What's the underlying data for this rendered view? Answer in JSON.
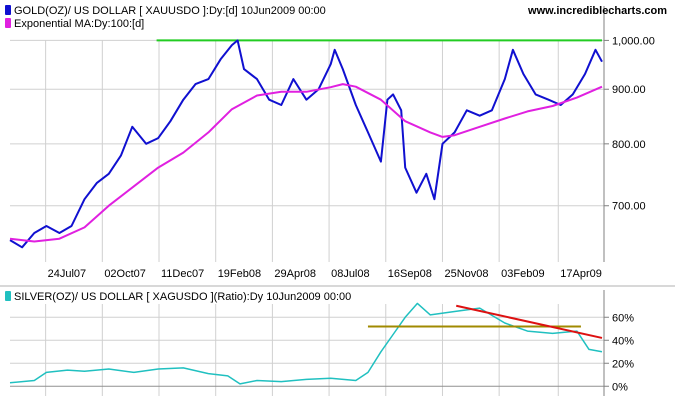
{
  "site": "www.incrediblecharts.com",
  "colors": {
    "price": "#1010d0",
    "ma": "#e020e0",
    "resistance": "#22cc22",
    "ratio": "#20c0c0",
    "ratio_support": "#a08a00",
    "ratio_trend": "#dd1111",
    "grid": "#d0d0d0"
  },
  "chart_data": [
    {
      "type": "line",
      "legend": [
        {
          "text": "GOLD(OZ)/ US DOLLAR [ XAUUSDO ]:Dy:[d]  10Jun2009 00:00",
          "color": "#1010d0"
        },
        {
          "text": "Exponential MA:Dy:100:[d]",
          "color": "#e020e0"
        }
      ],
      "x_ticks": [
        "24Jul07",
        "02Oct07",
        "11Dec07",
        "19Feb08",
        "29Apr08",
        "08Jul08",
        "16Sep08",
        "25Nov08",
        "03Feb09",
        "17Apr09"
      ],
      "y_ticks": [
        "1,000.00",
        "900.00",
        "800.00",
        "700.00"
      ],
      "y_log": true,
      "ylim": [
        620,
        1045
      ],
      "series": [
        {
          "key": "price",
          "x": [
            "2007-06-10",
            "2007-06-25",
            "2007-07-10",
            "2007-07-25",
            "2007-08-10",
            "2007-08-25",
            "2007-09-10",
            "2007-09-25",
            "2007-10-10",
            "2007-10-25",
            "2007-11-08",
            "2007-11-25",
            "2007-12-10",
            "2007-12-25",
            "2008-01-10",
            "2008-01-25",
            "2008-02-10",
            "2008-02-25",
            "2008-03-10",
            "2008-03-17",
            "2008-03-25",
            "2008-04-10",
            "2008-04-25",
            "2008-05-10",
            "2008-05-25",
            "2008-06-10",
            "2008-06-25",
            "2008-07-10",
            "2008-07-15",
            "2008-07-25",
            "2008-08-10",
            "2008-08-25",
            "2008-09-10",
            "2008-09-18",
            "2008-09-25",
            "2008-10-05",
            "2008-10-10",
            "2008-10-24",
            "2008-11-05",
            "2008-11-15",
            "2008-11-25",
            "2008-12-10",
            "2008-12-25",
            "2009-01-10",
            "2009-01-25",
            "2009-02-10",
            "2009-02-20",
            "2009-03-05",
            "2009-03-20",
            "2009-04-05",
            "2009-04-20",
            "2009-05-05",
            "2009-05-20",
            "2009-06-02",
            "2009-06-10"
          ],
          "y": [
            650,
            640,
            660,
            670,
            660,
            670,
            710,
            735,
            750,
            780,
            830,
            800,
            810,
            840,
            880,
            910,
            920,
            960,
            990,
            1000,
            940,
            920,
            880,
            870,
            920,
            880,
            900,
            950,
            980,
            940,
            870,
            820,
            770,
            880,
            890,
            860,
            760,
            720,
            750,
            710,
            800,
            820,
            860,
            850,
            860,
            920,
            980,
            930,
            890,
            880,
            870,
            890,
            930,
            980,
            955
          ]
        },
        {
          "key": "ma",
          "x": [
            "2007-06-10",
            "2007-07-10",
            "2007-08-10",
            "2007-09-10",
            "2007-10-10",
            "2007-11-10",
            "2007-12-10",
            "2008-01-10",
            "2008-02-10",
            "2008-03-10",
            "2008-04-10",
            "2008-05-10",
            "2008-06-10",
            "2008-07-10",
            "2008-07-25",
            "2008-08-10",
            "2008-09-10",
            "2008-10-10",
            "2008-11-10",
            "2008-11-25",
            "2008-12-10",
            "2009-01-10",
            "2009-02-10",
            "2009-03-10",
            "2009-04-10",
            "2009-05-10",
            "2009-06-10"
          ],
          "y": [
            652,
            648,
            652,
            668,
            700,
            730,
            760,
            785,
            820,
            862,
            888,
            895,
            895,
            904,
            910,
            905,
            880,
            840,
            820,
            812,
            815,
            830,
            845,
            858,
            868,
            884,
            905
          ]
        }
      ],
      "annotations": [
        {
          "type": "horizontal-line",
          "key": "resistance",
          "y": 1000,
          "x_from": "2007-12-08",
          "x_to": "2009-06-10"
        }
      ]
    },
    {
      "type": "line",
      "legend": [
        {
          "text": "SILVER(OZ)/ US DOLLAR [ XAGUSDO ](Ratio):Dy  10Jun2009 00:00",
          "color": "#20c0c0"
        }
      ],
      "y_ticks": [
        "60%",
        "40%",
        "20%",
        "0%"
      ],
      "ylim": [
        -5,
        75
      ],
      "series": [
        {
          "key": "ratio",
          "x": [
            "2007-06-10",
            "2007-07-10",
            "2007-07-25",
            "2007-08-20",
            "2007-09-10",
            "2007-10-10",
            "2007-11-10",
            "2007-12-10",
            "2008-01-10",
            "2008-02-10",
            "2008-03-05",
            "2008-03-20",
            "2008-04-10",
            "2008-05-10",
            "2008-06-10",
            "2008-07-10",
            "2008-08-10",
            "2008-08-25",
            "2008-09-10",
            "2008-09-25",
            "2008-10-10",
            "2008-10-25",
            "2008-11-10",
            "2008-12-10",
            "2009-01-10",
            "2009-02-10",
            "2009-03-10",
            "2009-04-10",
            "2009-05-10",
            "2009-05-25",
            "2009-06-10"
          ],
          "y": [
            3,
            5,
            12,
            14,
            13,
            15,
            12,
            15,
            16,
            11,
            9,
            2,
            5,
            4,
            6,
            7,
            5,
            12,
            30,
            45,
            60,
            72,
            62,
            65,
            68,
            55,
            48,
            46,
            48,
            32,
            30
          ]
        }
      ],
      "annotations": [
        {
          "type": "trend-line",
          "key": "ratio_support",
          "x_from": "2008-08-25",
          "y_from": 52,
          "x_to": "2009-05-15",
          "y_to": 52
        },
        {
          "type": "trend-line",
          "key": "ratio_trend",
          "x_from": "2008-12-12",
          "y_from": 70,
          "x_to": "2009-06-10",
          "y_to": 42
        }
      ]
    }
  ]
}
